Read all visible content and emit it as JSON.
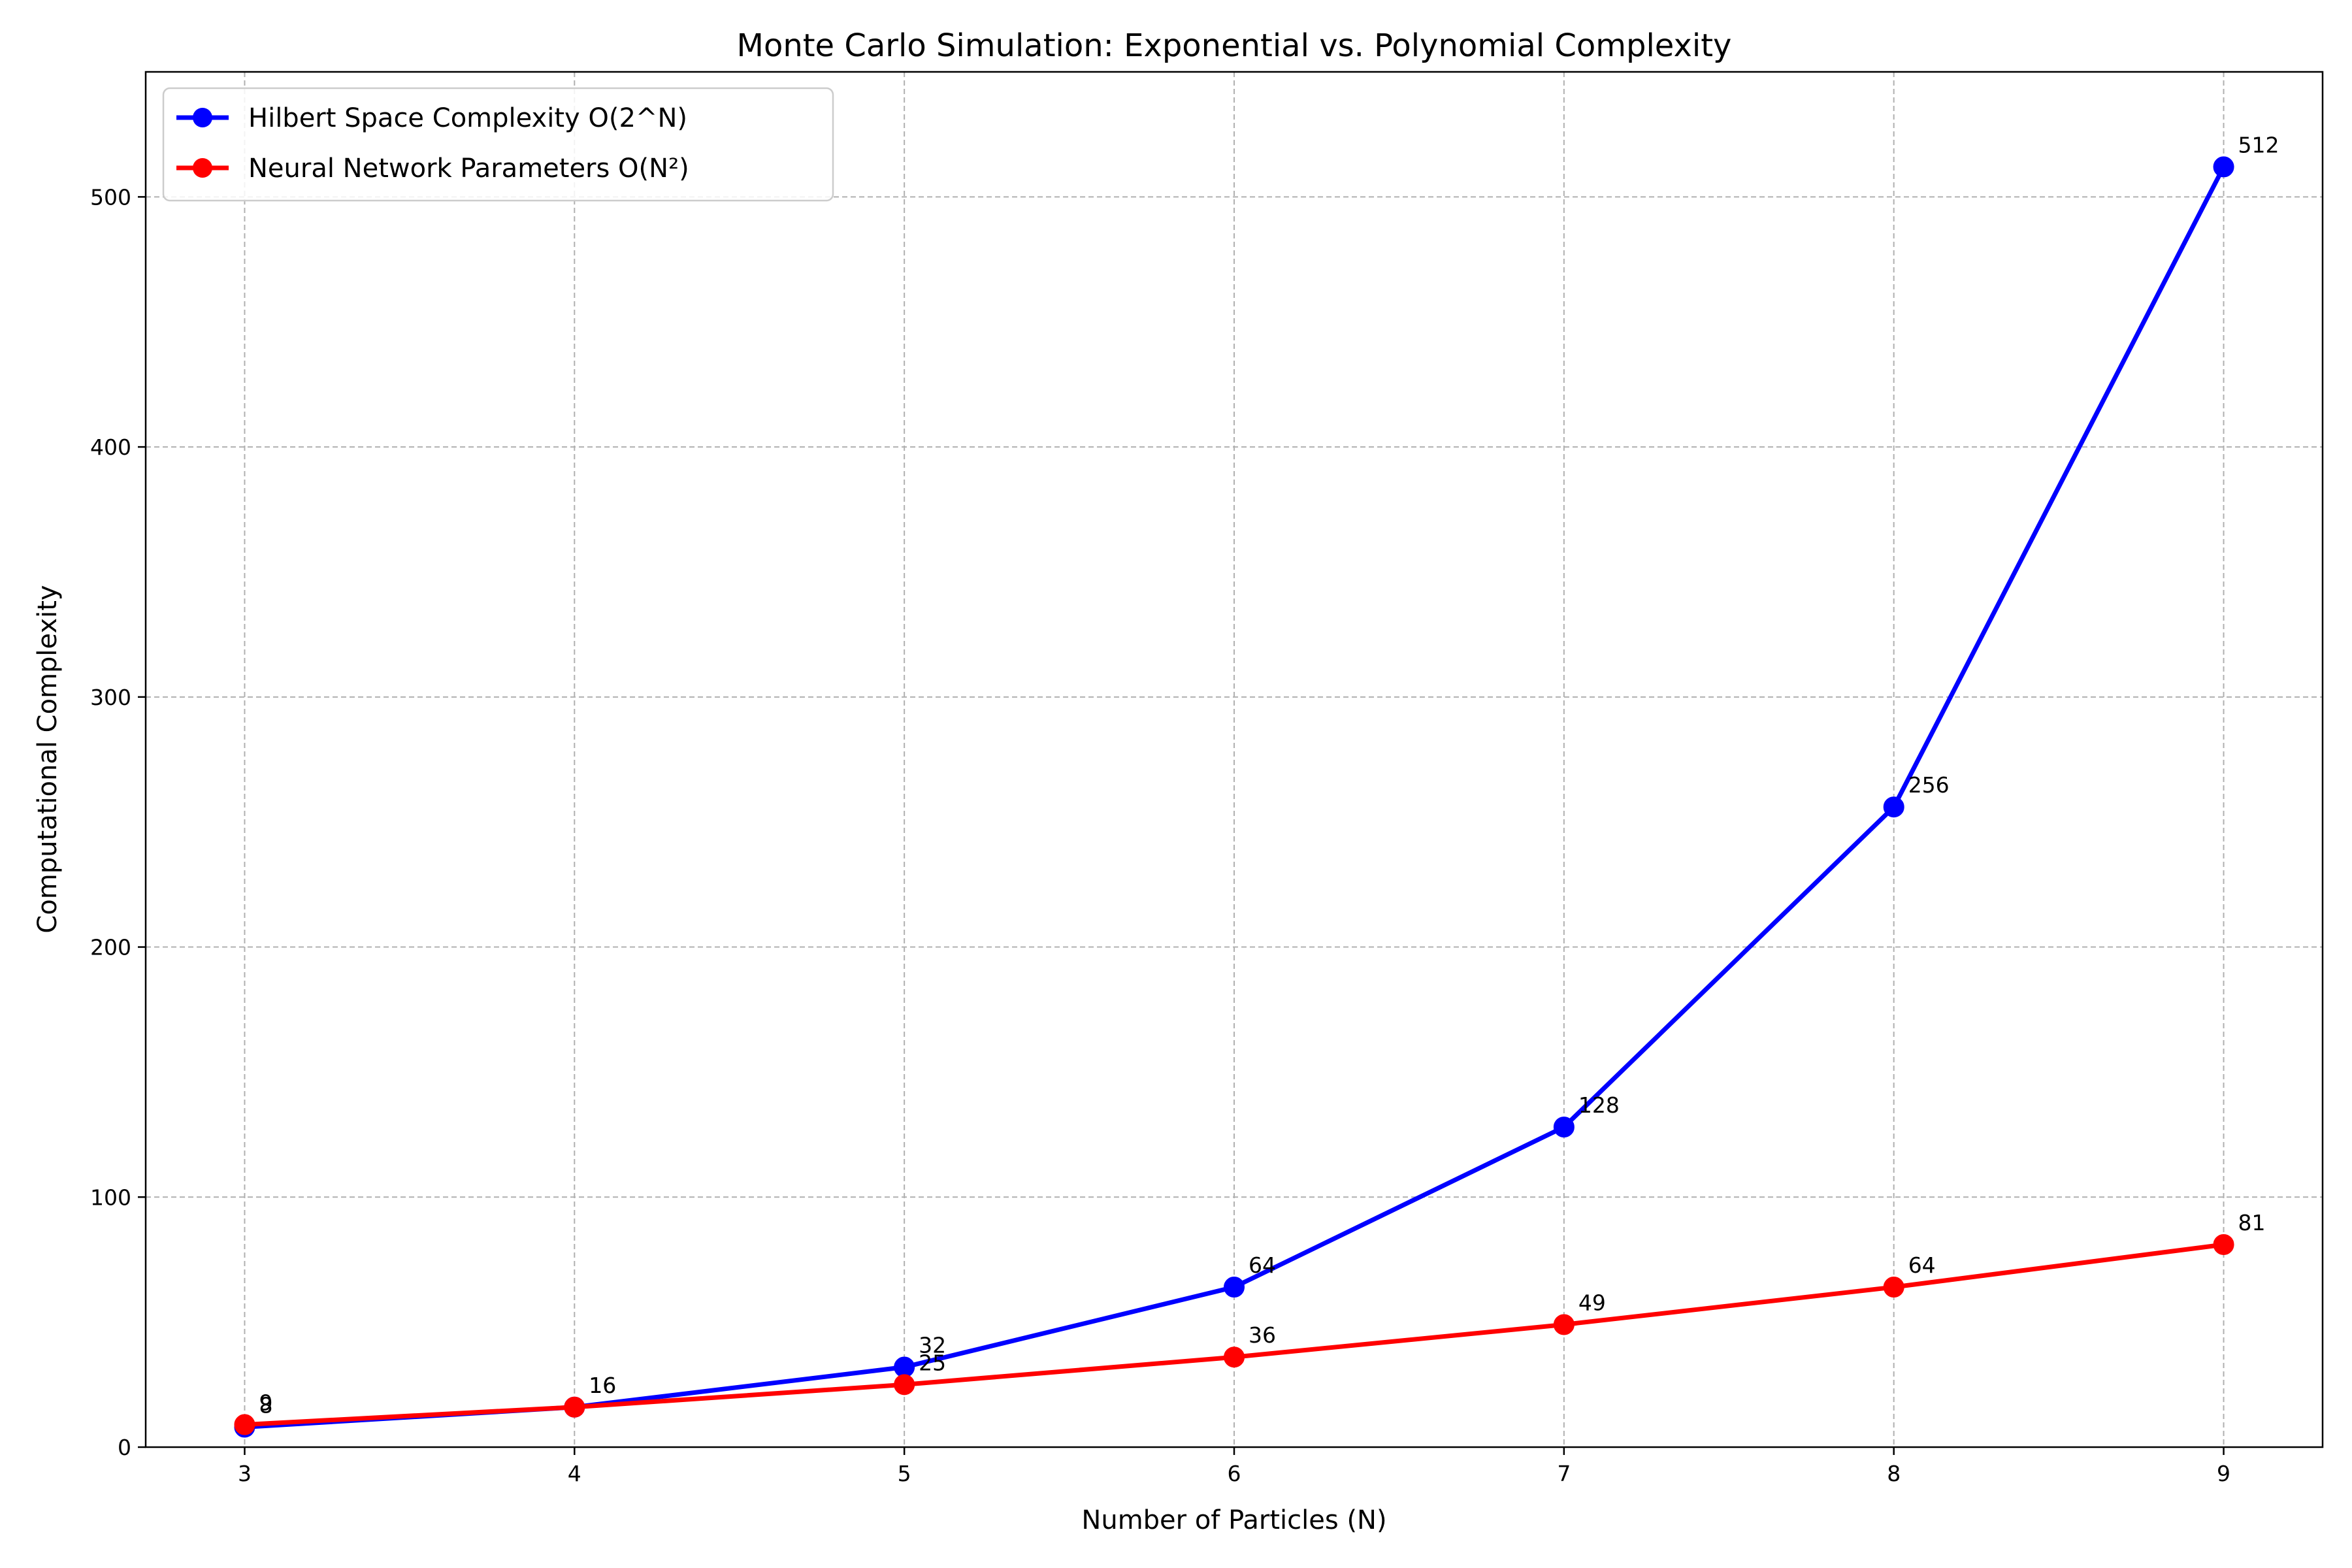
{
  "chart_data": {
    "type": "line",
    "title": "Monte Carlo Simulation: Exponential vs. Polynomial Complexity",
    "xlabel": "Number of Particles (N)",
    "ylabel": "Computational Complexity",
    "x": [
      3,
      4,
      5,
      6,
      7,
      8,
      9
    ],
    "xlim": [
      2.7,
      9.3
    ],
    "ylim": [
      0,
      550
    ],
    "xticks": [
      3,
      4,
      5,
      6,
      7,
      8,
      9
    ],
    "yticks": [
      0,
      100,
      200,
      300,
      400,
      500
    ],
    "grid": true,
    "legend_position": "upper-left",
    "series": [
      {
        "name": "Hilbert Space Complexity O(2^N)",
        "color": "#0000ff",
        "values": [
          8,
          16,
          32,
          64,
          128,
          256,
          512
        ],
        "labels": [
          "8",
          "16",
          "32",
          "64",
          "128",
          "256",
          "512"
        ]
      },
      {
        "name": "Neural Network Parameters O(N²)",
        "color": "#ff0000",
        "values": [
          9,
          16,
          25,
          36,
          49,
          64,
          81
        ],
        "labels": [
          "9",
          "16",
          "25",
          "36",
          "49",
          "64",
          "81"
        ]
      }
    ]
  }
}
